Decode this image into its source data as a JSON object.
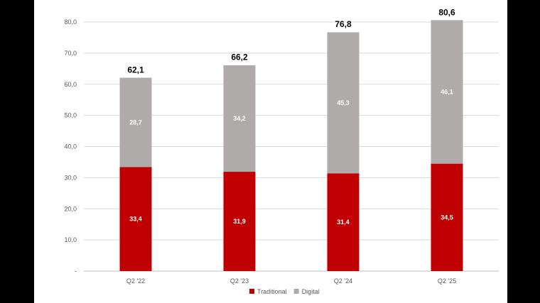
{
  "chart_data": {
    "type": "bar",
    "stacked": true,
    "categories": [
      "Q2 '22",
      "Q2 '23",
      "Q2 '24",
      "Q2 '25"
    ],
    "series": [
      {
        "name": "Traditional",
        "color": "#c00000",
        "values": [
          33.4,
          31.9,
          31.4,
          34.5
        ],
        "labels": [
          "33,4",
          "31,9",
          "31,4",
          "34,5"
        ]
      },
      {
        "name": "Digital",
        "color": "#afabab",
        "values": [
          28.7,
          34.2,
          45.3,
          46.1
        ],
        "labels": [
          "28,7",
          "34,2",
          "45,3",
          "46,1"
        ]
      }
    ],
    "totals": [
      62.1,
      66.2,
      76.8,
      80.6
    ],
    "total_labels": [
      "62,1",
      "66,2",
      "76,8",
      "80,6"
    ],
    "ylim": [
      0,
      80
    ],
    "yticks": [
      0,
      10,
      20,
      30,
      40,
      50,
      60,
      70,
      80
    ],
    "ytick_labels": [
      "-",
      "10,0",
      "20,0",
      "30,0",
      "40,0",
      "50,0",
      "60,0",
      "70,0",
      "80,0"
    ],
    "grid": true,
    "legend_position": "bottom",
    "title": "",
    "xlabel": "",
    "ylabel": ""
  }
}
